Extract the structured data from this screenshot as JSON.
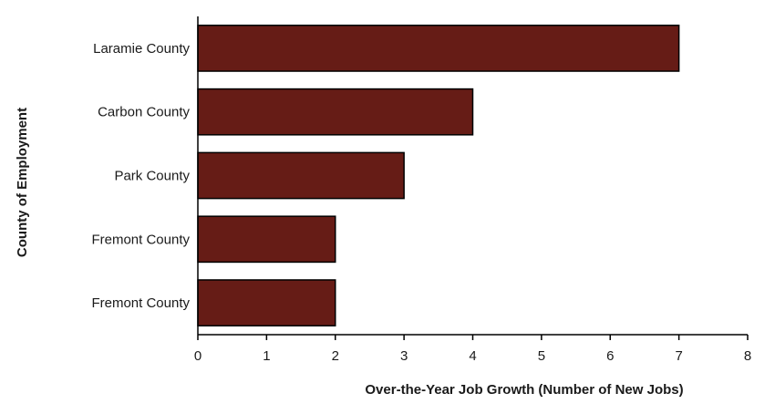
{
  "chart_data": {
    "type": "bar",
    "orientation": "horizontal",
    "categories": [
      "Laramie County",
      "Carbon County",
      "Park County",
      "Fremont County",
      "Fremont County"
    ],
    "values": [
      7,
      4,
      3,
      2,
      2
    ],
    "xlabel": "Over-the-Year Job Growth (Number of New Jobs)",
    "ylabel": "County of Employment",
    "xlim": [
      0,
      8
    ],
    "xticks": [
      "0",
      "1",
      "2",
      "3",
      "4",
      "5",
      "6",
      "7",
      "8"
    ],
    "grid": false,
    "legend": "none",
    "bar_color": "#661c16",
    "bar_edge_color": "#000000"
  }
}
